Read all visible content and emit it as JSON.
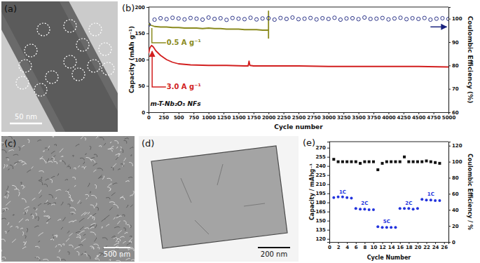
{
  "chart_data": [
    {
      "type": "line",
      "label": "(b)",
      "xlabel": "Cycle number",
      "ylabel": "Capacity (mAh g⁻¹)",
      "y2label": "Coulombic Efficiency (%)",
      "annotations": [
        "m-T-Nb₂O₅ NFs"
      ],
      "xlim": [
        0,
        5000
      ],
      "xticks": [
        0,
        250,
        500,
        750,
        1000,
        1250,
        1500,
        1750,
        2000,
        2250,
        2500,
        2750,
        3000,
        3250,
        3500,
        3750,
        4000,
        4250,
        4500,
        4750,
        5000
      ],
      "ylim": [
        0,
        200
      ],
      "yticks": [
        0,
        50,
        100,
        150,
        200
      ],
      "y2lim": [
        60,
        105
      ],
      "y2ticks": [
        60,
        70,
        80,
        90,
        100
      ],
      "series": [
        {
          "name": "0.5 A g⁻¹",
          "color": "#8a8a1e",
          "x": [
            1,
            25,
            50,
            100,
            200,
            300,
            400,
            500,
            600,
            700,
            800,
            900,
            1000,
            1100,
            1200,
            1300,
            1400,
            1500,
            1600,
            1700,
            1800,
            1900,
            2000,
            2000,
            2000
          ],
          "values": [
            170,
            166,
            165,
            163,
            162,
            162,
            161,
            161,
            160,
            160,
            160,
            159,
            160,
            159,
            159,
            158,
            158,
            158,
            157,
            157,
            157,
            156,
            156,
            192,
            140
          ]
        },
        {
          "name": "3.0 A g⁻¹",
          "color": "#d21f1f",
          "x": [
            1,
            20,
            50,
            80,
            120,
            200,
            300,
            400,
            500,
            700,
            1000,
            1300,
            1600,
            1660,
            1675,
            1690,
            1750,
            2000,
            2500,
            3000,
            3500,
            4000,
            4500,
            5000
          ],
          "values": [
            112,
            122,
            127,
            124,
            117,
            108,
            100,
            95,
            92,
            90,
            89,
            89,
            88,
            88,
            97,
            89,
            88,
            88,
            88,
            87,
            87,
            87,
            87,
            86
          ]
        },
        {
          "type": "scatter",
          "marker": "open_circle",
          "axis": "y2",
          "color": "#1a237e",
          "x": [
            1,
            100,
            200,
            300,
            400,
            500,
            600,
            700,
            800,
            900,
            1000,
            1100,
            1200,
            1300,
            1400,
            1500,
            1600,
            1700,
            1800,
            1900,
            2000,
            2100,
            2200,
            2300,
            2400,
            2500,
            2600,
            2700,
            2800,
            2900,
            3000,
            3100,
            3200,
            3300,
            3400,
            3500,
            3600,
            3700,
            3800,
            3900,
            4000,
            4100,
            4200,
            4300,
            4400,
            4500,
            4600,
            4700,
            4800,
            4900,
            5000
          ],
          "values": [
            97.5,
            99.6,
            100.2,
            99.8,
            100.4,
            100.1,
            99.7,
            100.3,
            100.0,
            99.6,
            100.5,
            99.9,
            100.2,
            99.5,
            100.3,
            100.0,
            99.8,
            100.4,
            99.7,
            100.1,
            100.2,
            99.6,
            100.3,
            99.9,
            100.5,
            99.8,
            100.0,
            100.3,
            99.7,
            100.2,
            99.9,
            100.4,
            99.6,
            100.1,
            100.2,
            99.8,
            100.5,
            99.9,
            100.0,
            100.3,
            99.7,
            100.1,
            100.4,
            99.8,
            100.2,
            99.9,
            100.3,
            99.6,
            100.0,
            100.2,
            99.9
          ]
        }
      ]
    },
    {
      "type": "scatter",
      "label": "(e)",
      "xlabel": "Cycle Number",
      "ylabel": "Capacity / mAhg⁻¹",
      "y2label": "Coulombic Efficiency / %",
      "annotations": [
        "1C",
        "2C",
        "5C",
        "2C",
        "1C"
      ],
      "xlim": [
        0,
        27
      ],
      "xticks": [
        0,
        2,
        4,
        6,
        8,
        10,
        12,
        14,
        16,
        18,
        20,
        22,
        24,
        26
      ],
      "ylim": [
        115,
        280
      ],
      "yticks": [
        120,
        135,
        150,
        165,
        180,
        195,
        210,
        225,
        240,
        255,
        270
      ],
      "y2lim": [
        0,
        125
      ],
      "y2ticks": [
        0,
        20,
        40,
        60,
        80,
        100,
        120
      ],
      "x": [
        1,
        2,
        3,
        4,
        5,
        6,
        7,
        8,
        9,
        10,
        11,
        12,
        13,
        14,
        15,
        16,
        17,
        18,
        19,
        20,
        21,
        22,
        23,
        24,
        25
      ],
      "series": [
        {
          "marker": "circle",
          "color": "#2233dd",
          "values": [
            188,
            189,
            189,
            188,
            187,
            170,
            169,
            169,
            168,
            168,
            140,
            139,
            139,
            139,
            139,
            170,
            170,
            170,
            169,
            170,
            185,
            184,
            184,
            183,
            183
          ]
        },
        {
          "marker": "square",
          "axis": "y2",
          "color": "#111111",
          "values": [
            103,
            100,
            100,
            100,
            100,
            100,
            98,
            100,
            100,
            100,
            90,
            98,
            100,
            100,
            100,
            100,
            106,
            100,
            100,
            100,
            100,
            101,
            100,
            99,
            98
          ]
        }
      ]
    }
  ],
  "images": [
    {
      "label": "(a)",
      "scale_bar": "50 nm"
    },
    {
      "label": "(c)",
      "scale_bar": "500 nm"
    },
    {
      "label": "(d)",
      "scale_bar": "200 nm"
    }
  ]
}
